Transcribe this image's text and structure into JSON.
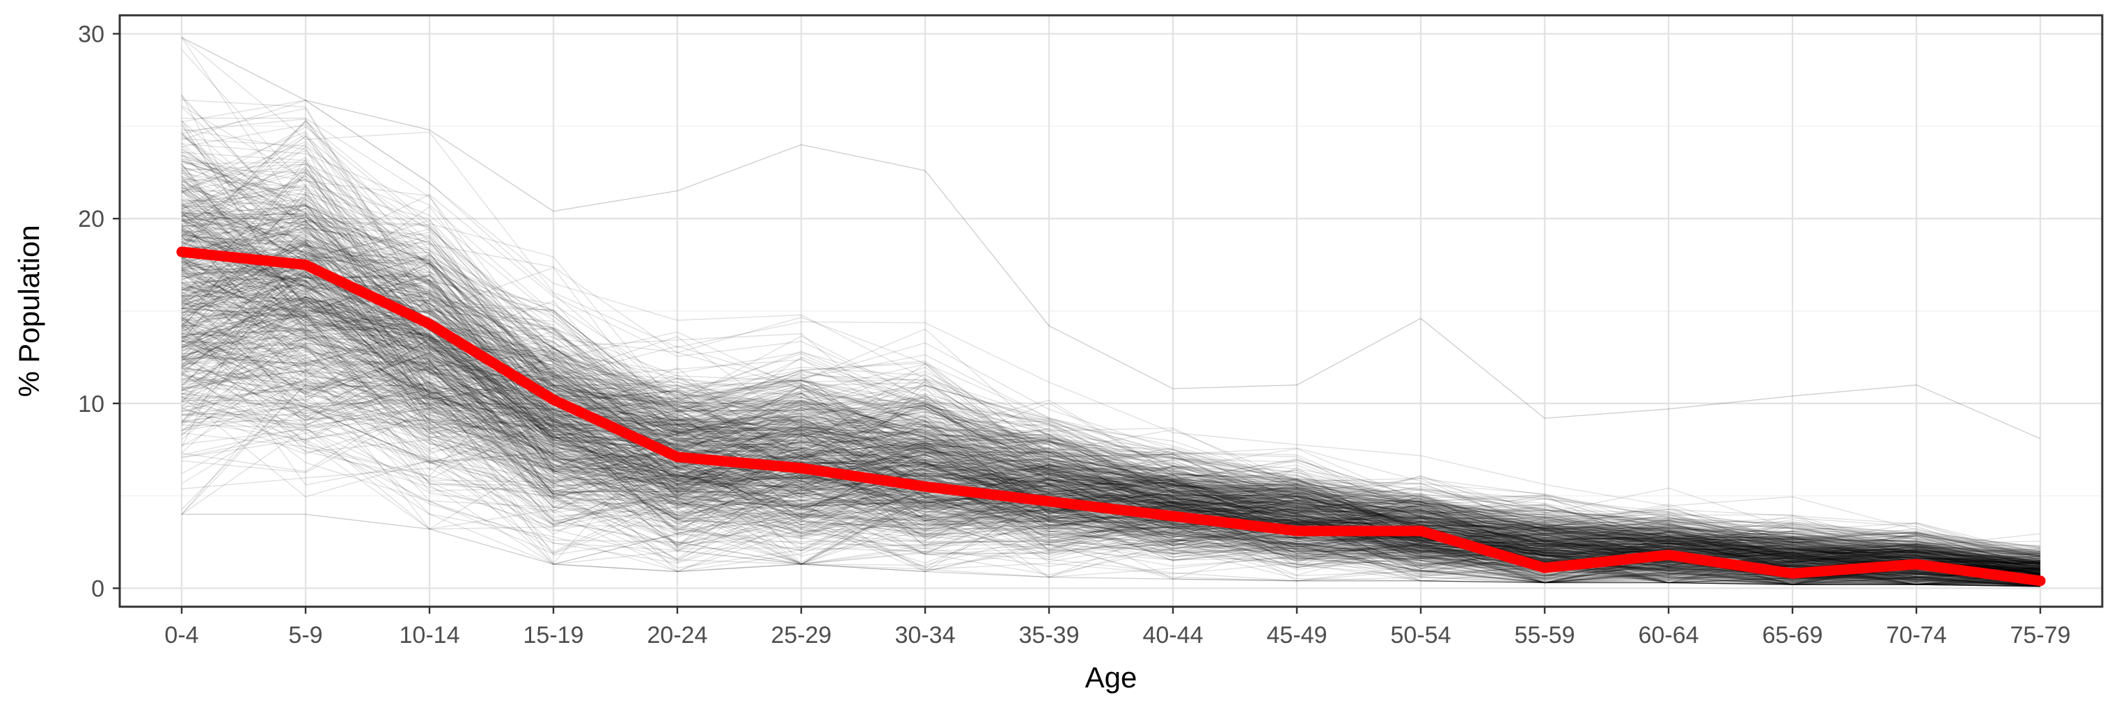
{
  "chart_data": {
    "type": "line",
    "title": "",
    "xlabel": "Age",
    "ylabel": "% Population",
    "categories": [
      "0-4",
      "5-9",
      "10-14",
      "15-19",
      "20-24",
      "25-29",
      "30-34",
      "35-39",
      "40-44",
      "45-49",
      "50-54",
      "55-59",
      "60-64",
      "65-69",
      "70-74",
      "75-79"
    ],
    "yticks": [
      0,
      10,
      20,
      30
    ],
    "ylim": [
      -1,
      31
    ],
    "grid": true,
    "legend": "none",
    "series": [
      {
        "role": "highlighted mean line",
        "color": "#ff0000",
        "values": [
          18.2,
          17.5,
          14.3,
          10.2,
          7.1,
          6.5,
          5.5,
          4.7,
          3.9,
          3.1,
          3.1,
          1.1,
          1.8,
          0.8,
          1.3,
          0.4
        ]
      }
    ],
    "background_lines": {
      "count": 600,
      "color": "#000000",
      "opacity": 0.13,
      "center": [
        16.5,
        16.0,
        13.0,
        9.0,
        7.0,
        7.0,
        6.5,
        5.5,
        4.5,
        3.8,
        3.0,
        2.2,
        2.0,
        1.6,
        1.4,
        0.9
      ],
      "spread": [
        4.5,
        4.0,
        3.5,
        3.0,
        2.4,
        2.6,
        2.4,
        1.8,
        1.4,
        1.3,
        1.2,
        1.1,
        1.0,
        0.9,
        0.8,
        0.6
      ],
      "range_min": [
        4.0,
        4.0,
        3.2,
        1.3,
        0.9,
        1.3,
        0.9,
        0.6,
        0.5,
        0.4,
        0.4,
        0.3,
        0.3,
        0.2,
        0.2,
        0.1
      ],
      "range_max": [
        29.8,
        26.4,
        24.8,
        20.4,
        21.5,
        24.0,
        22.6,
        14.2,
        10.8,
        11.0,
        14.6,
        9.2,
        9.7,
        10.4,
        11.0,
        8.1
      ]
    }
  }
}
